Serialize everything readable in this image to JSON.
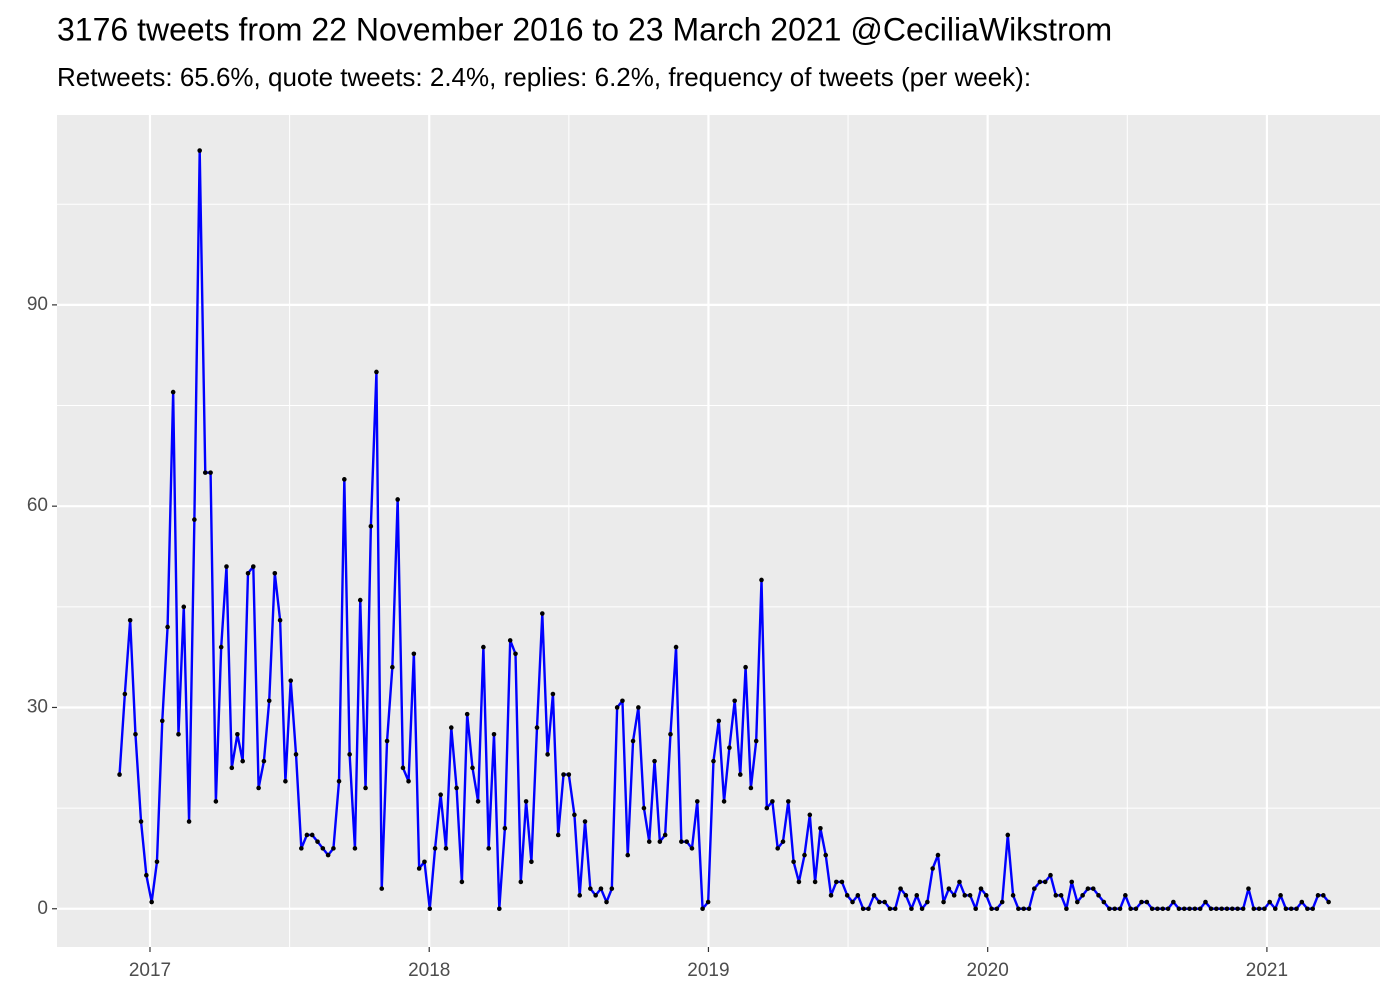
{
  "chart_data": {
    "type": "line",
    "title": "3176 tweets from 22 November 2016 to 23 March 2021 @CeciliaWikstrom",
    "subtitle": "Retweets: 65.6%, quote tweets: 2.4%, replies: 6.2%, frequency of tweets (per week):",
    "line_color": "#0000ff",
    "point_color": "#000000",
    "grid": true,
    "xlim": [
      2016.667,
      2021.405
    ],
    "ylim": [
      -5.7,
      118.3
    ],
    "xticks": [
      2017,
      2018,
      2019,
      2020,
      2021
    ],
    "yticks": [
      0,
      30,
      60,
      90
    ],
    "x_minor_ticks": [
      2017.5,
      2018.5,
      2019.5,
      2020.5
    ],
    "y_minor_ticks": [
      15,
      45,
      75,
      105
    ],
    "x": [
      2016.891,
      2016.91,
      2016.929,
      2016.948,
      2016.968,
      2016.987,
      2017.006,
      2017.025,
      2017.044,
      2017.063,
      2017.083,
      2017.102,
      2017.121,
      2017.14,
      2017.159,
      2017.178,
      2017.198,
      2017.217,
      2017.236,
      2017.255,
      2017.274,
      2017.293,
      2017.313,
      2017.332,
      2017.351,
      2017.37,
      2017.389,
      2017.408,
      2017.427,
      2017.447,
      2017.466,
      2017.485,
      2017.504,
      2017.523,
      2017.542,
      2017.562,
      2017.581,
      2017.6,
      2017.619,
      2017.638,
      2017.657,
      2017.677,
      2017.696,
      2017.715,
      2017.734,
      2017.753,
      2017.772,
      2017.791,
      2017.811,
      2017.83,
      2017.849,
      2017.868,
      2017.887,
      2017.906,
      2017.926,
      2017.945,
      2017.964,
      2017.983,
      2018.002,
      2018.021,
      2018.041,
      2018.06,
      2018.079,
      2018.098,
      2018.117,
      2018.136,
      2018.155,
      2018.175,
      2018.194,
      2018.213,
      2018.232,
      2018.251,
      2018.271,
      2018.29,
      2018.309,
      2018.328,
      2018.347,
      2018.366,
      2018.386,
      2018.405,
      2018.424,
      2018.443,
      2018.462,
      2018.481,
      2018.5,
      2018.52,
      2018.539,
      2018.558,
      2018.577,
      2018.596,
      2018.615,
      2018.635,
      2018.654,
      2018.673,
      2018.692,
      2018.711,
      2018.73,
      2018.749,
      2018.769,
      2018.788,
      2018.807,
      2018.826,
      2018.845,
      2018.864,
      2018.884,
      2018.903,
      2018.922,
      2018.941,
      2018.96,
      2018.979,
      2018.999,
      2019.018,
      2019.037,
      2019.056,
      2019.075,
      2019.094,
      2019.114,
      2019.133,
      2019.152,
      2019.171,
      2019.19,
      2019.209,
      2019.229,
      2019.248,
      2019.267,
      2019.286,
      2019.305,
      2019.324,
      2019.344,
      2019.363,
      2019.382,
      2019.401,
      2019.42,
      2019.439,
      2019.458,
      2019.478,
      2019.497,
      2019.516,
      2019.535,
      2019.554,
      2019.573,
      2019.593,
      2019.612,
      2019.631,
      2019.65,
      2019.669,
      2019.688,
      2019.707,
      2019.727,
      2019.746,
      2019.765,
      2019.784,
      2019.803,
      2019.822,
      2019.842,
      2019.861,
      2019.88,
      2019.899,
      2019.918,
      2019.937,
      2019.957,
      2019.976,
      2019.995,
      2020.014,
      2020.033,
      2020.052,
      2020.072,
      2020.091,
      2020.11,
      2020.129,
      2020.148,
      2020.167,
      2020.187,
      2020.206,
      2020.225,
      2020.244,
      2020.263,
      2020.282,
      2020.301,
      2020.321,
      2020.34,
      2020.359,
      2020.378,
      2020.397,
      2020.416,
      2020.436,
      2020.455,
      2020.474,
      2020.493,
      2020.512,
      2020.531,
      2020.551,
      2020.57,
      2020.589,
      2020.608,
      2020.627,
      2020.646,
      2020.665,
      2020.685,
      2020.704,
      2020.723,
      2020.742,
      2020.761,
      2020.78,
      2020.8,
      2020.819,
      2020.838,
      2020.857,
      2020.876,
      2020.895,
      2020.915,
      2020.934,
      2020.953,
      2020.972,
      2020.991,
      2021.01,
      2021.03,
      2021.049,
      2021.068,
      2021.087,
      2021.106,
      2021.125,
      2021.145,
      2021.164,
      2021.183,
      2021.202,
      2021.221
    ],
    "values": [
      20,
      32,
      43,
      26,
      13,
      5,
      1,
      7,
      28,
      42,
      77,
      26,
      45,
      13,
      58,
      113,
      65,
      65,
      16,
      39,
      51,
      21,
      26,
      22,
      50,
      51,
      18,
      22,
      31,
      50,
      43,
      19,
      34,
      23,
      9,
      11,
      11,
      10,
      9,
      8,
      9,
      19,
      64,
      23,
      9,
      46,
      18,
      57,
      80,
      3,
      25,
      36,
      61,
      21,
      19,
      38,
      6,
      7,
      0,
      9,
      17,
      9,
      27,
      18,
      4,
      29,
      21,
      16,
      39,
      9,
      26,
      0,
      12,
      40,
      38,
      4,
      16,
      7,
      27,
      44,
      23,
      32,
      11,
      20,
      20,
      14,
      2,
      13,
      3,
      2,
      3,
      1,
      3,
      30,
      31,
      8,
      25,
      30,
      15,
      10,
      22,
      10,
      11,
      26,
      39,
      10,
      10,
      9,
      16,
      0,
      1,
      22,
      28,
      16,
      24,
      31,
      20,
      36,
      18,
      25,
      49,
      15,
      16,
      9,
      10,
      16,
      7,
      4,
      8,
      14,
      4,
      12,
      8,
      2,
      4,
      4,
      2,
      1,
      2,
      0,
      0,
      2,
      1,
      1,
      0,
      0,
      3,
      2,
      0,
      2,
      0,
      1,
      6,
      8,
      1,
      3,
      2,
      4,
      2,
      2,
      0,
      3,
      2,
      0,
      0,
      1,
      11,
      2,
      0,
      0,
      0,
      3,
      4,
      4,
      5,
      2,
      2,
      0,
      4,
      1,
      2,
      3,
      3,
      2,
      1,
      0,
      0,
      0,
      2,
      0,
      0,
      1,
      1,
      0,
      0,
      0,
      0,
      1,
      0,
      0,
      0,
      0,
      0,
      1,
      0,
      0,
      0,
      0,
      0,
      0,
      0,
      3,
      0,
      0,
      0,
      1,
      0,
      2,
      0,
      0,
      0,
      1,
      0,
      0,
      2,
      2,
      1
    ]
  }
}
